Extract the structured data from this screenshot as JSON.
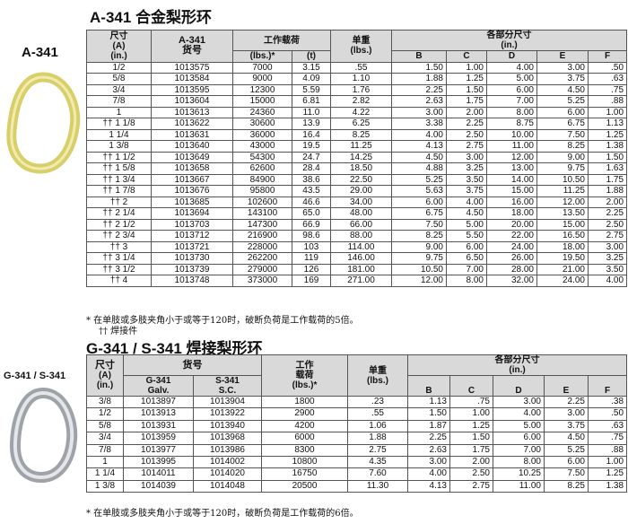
{
  "section1": {
    "title": "A-341  合金梨形环",
    "side_label": "A-341",
    "headers": {
      "size": "尺寸\n(A)\n(in.)",
      "part_top": "A-341",
      "part_bottom": "货号",
      "wll": "工作载荷",
      "lbs": "(lbs.)*",
      "t": "(t)",
      "weight": "单重\n(lbs.)",
      "dims": "各部分尺寸\n(in.)",
      "B": "B",
      "C": "C",
      "D": "D",
      "E": "E",
      "F": "F"
    },
    "rows": [
      [
        "1/2",
        "1013575",
        "7000",
        "3.15",
        ".55",
        "1.50",
        "1.00",
        "4.00",
        "3.00",
        ".50"
      ],
      [
        "5/8",
        "1013584",
        "9000",
        "4.09",
        "1.10",
        "1.88",
        "1.25",
        "5.00",
        "3.75",
        ".63"
      ],
      [
        "3/4",
        "1013595",
        "12300",
        "5.59",
        "1.76",
        "2.25",
        "1.50",
        "6.00",
        "4.50",
        ".75"
      ],
      [
        "7/8",
        "1013604",
        "15000",
        "6.81",
        "2.82",
        "2.63",
        "1.75",
        "7.00",
        "5.25",
        ".88"
      ],
      [
        "1",
        "1013613",
        "24360",
        "11.0",
        "4.22",
        "3.00",
        "2.00",
        "8.00",
        "6.00",
        "1.00"
      ],
      [
        "†† 1 1/8",
        "1013622",
        "30600",
        "13.9",
        "6.25",
        "3.38",
        "2.25",
        "8.75",
        "6.75",
        "1.13"
      ],
      [
        "1 1/4",
        "1013631",
        "36000",
        "16.4",
        "8.25",
        "4.00",
        "2.50",
        "10.00",
        "7.50",
        "1.25"
      ],
      [
        "1 3/8",
        "1013640",
        "43000",
        "19.5",
        "11.25",
        "4.13",
        "2.75",
        "11.00",
        "8.25",
        "1.38"
      ],
      [
        "†† 1 1/2",
        "1013649",
        "54300",
        "24.7",
        "14.25",
        "4.50",
        "3.00",
        "12.00",
        "9.00",
        "1.50"
      ],
      [
        "†† 1 5/8",
        "1013658",
        "62600",
        "28.4",
        "18.50",
        "4.88",
        "3.25",
        "13.00",
        "9.75",
        "1.63"
      ],
      [
        "†† 1 3/4",
        "1013667",
        "84900",
        "38.6",
        "22.50",
        "5.25",
        "3.50",
        "14.00",
        "10.50",
        "1.75"
      ],
      [
        "†† 1 7/8",
        "1013676",
        "95800",
        "43.5",
        "29.00",
        "5.63",
        "3.75",
        "15.00",
        "11.25",
        "1.88"
      ],
      [
        "†† 2",
        "1013685",
        "102600",
        "46.6",
        "34.00",
        "6.00",
        "4.00",
        "16.00",
        "12.00",
        "2.00"
      ],
      [
        "†† 2 1/4",
        "1013694",
        "143100",
        "65.0",
        "48.00",
        "6.75",
        "4.50",
        "18.00",
        "13.50",
        "2.25"
      ],
      [
        "†† 2 1/2",
        "1013703",
        "147300",
        "66.9",
        "66.00",
        "7.50",
        "5.00",
        "20.00",
        "15.00",
        "2.50"
      ],
      [
        "†† 2 3/4",
        "1013712",
        "216900",
        "98.6",
        "88.00",
        "8.25",
        "5.50",
        "22.00",
        "16.50",
        "2.75"
      ],
      [
        "†† 3",
        "1013721",
        "228000",
        "103",
        "114.00",
        "9.00",
        "6.00",
        "24.00",
        "18.00",
        "3.00"
      ],
      [
        "†† 3 1/4",
        "1013730",
        "262200",
        "119",
        "146.00",
        "9.75",
        "6.50",
        "26.00",
        "19.50",
        "3.25"
      ],
      [
        "†† 3 1/2",
        "1013739",
        "279000",
        "126",
        "181.00",
        "10.50",
        "7.00",
        "28.00",
        "21.00",
        "3.50"
      ],
      [
        "†† 4",
        "1013748",
        "373000",
        "169",
        "271.00",
        "12.00",
        "8.00",
        "32.00",
        "24.00",
        "4.00"
      ]
    ],
    "note1": "* 在单肢或多肢夹角小于或等于120时，破断负荷是工作载荷的5倍。",
    "note2": "†† 焊接件"
  },
  "section2": {
    "title": "G-341 / S-341  焊接梨形环",
    "side_label": "G-341 / S-341",
    "headers": {
      "size_top": "尺寸",
      "size_bottom": "(A)\n(in.)",
      "part": "货号",
      "g": "G-341\nGalv.",
      "s": "S-341\nS.C.",
      "wll": "工作\n载荷\n(lbs.)*",
      "weight": "单重\n(lbs.)",
      "dims": "各部分尺寸\n(in.)",
      "B": "B",
      "C": "C",
      "D": "D",
      "E": "E",
      "F": "F"
    },
    "rows": [
      [
        "3/8",
        "1013897",
        "1013904",
        "1800",
        ".23",
        "1.13",
        ".75",
        "3.00",
        "2.25",
        ".38"
      ],
      [
        "1/2",
        "1013913",
        "1013922",
        "2900",
        ".55",
        "1.50",
        "1.00",
        "4.00",
        "3.00",
        ".50"
      ],
      [
        "5/8",
        "1013931",
        "1013940",
        "4200",
        "1.06",
        "1.87",
        "1.25",
        "5.00",
        "3.75",
        ".63"
      ],
      [
        "3/4",
        "1013959",
        "1013968",
        "6000",
        "1.88",
        "2.25",
        "1.50",
        "6.00",
        "4.50",
        ".75"
      ],
      [
        "7/8",
        "1013977",
        "1013986",
        "8300",
        "2.75",
        "2.63",
        "1.75",
        "7.00",
        "5.25",
        ".88"
      ],
      [
        "1",
        "1013995",
        "1014002",
        "10800",
        "4.35",
        "3.00",
        "2.00",
        "8.00",
        "6.00",
        "1.00"
      ],
      [
        "1 1/4",
        "1014011",
        "1014020",
        "16750",
        "7.60",
        "4.00",
        "2.50",
        "10.25",
        "7.50",
        "1.25"
      ],
      [
        "1 3/8",
        "1014039",
        "1014048",
        "20500",
        "11.30",
        "4.13",
        "2.75",
        "11.00",
        "8.25",
        "1.38"
      ]
    ],
    "note": "* 在单肢或多肢夹角小于或等于120时，破断负荷是工作载荷的6倍。"
  },
  "colors": {
    "header_bg": "#d9d9d9",
    "ring1": "#d8cf6a",
    "ring2": "#b8bcc2"
  }
}
